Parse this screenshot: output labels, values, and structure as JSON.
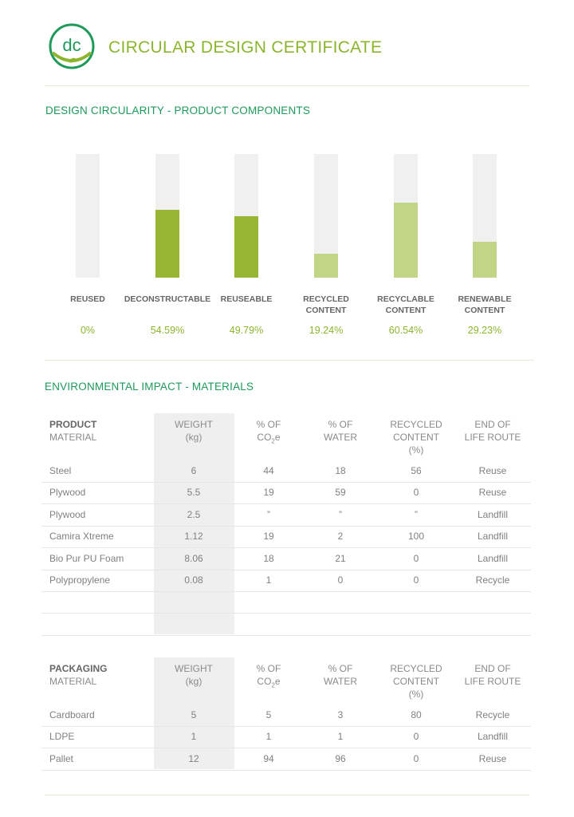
{
  "header": {
    "logo_text": "dc",
    "title": "CIRCULAR DESIGN CERTIFICATE"
  },
  "colors": {
    "brand_green": "#8cb52e",
    "section_green": "#1e9a5a",
    "bar_dark": "#97b634",
    "bar_light": "#c2d486",
    "track": "#f0f0f0"
  },
  "components": {
    "title": "DESIGN CIRCULARITY - PRODUCT COMPONENTS",
    "bars": [
      {
        "label_line1": "REUSED",
        "label_line2": "",
        "value_text": "0%",
        "percent": 0,
        "tone": "dark"
      },
      {
        "label_line1": "DECONSTRUCTABLE",
        "label_line2": "",
        "value_text": "54.59%",
        "percent": 54.59,
        "tone": "dark"
      },
      {
        "label_line1": "REUSEABLE",
        "label_line2": "",
        "value_text": "49.79%",
        "percent": 49.79,
        "tone": "dark"
      },
      {
        "label_line1": "RECYCLED",
        "label_line2": "CONTENT",
        "value_text": "19.24%",
        "percent": 19.24,
        "tone": "light"
      },
      {
        "label_line1": "RECYCLABLE",
        "label_line2": "CONTENT",
        "value_text": "60.54%",
        "percent": 60.54,
        "tone": "light"
      },
      {
        "label_line1": "RENEWABLE",
        "label_line2": "CONTENT",
        "value_text": "29.23%",
        "percent": 29.23,
        "tone": "light"
      }
    ]
  },
  "materials": {
    "title": "ENVIRONMENTAL IMPACT - MATERIALS",
    "columns": {
      "weight": [
        "WEIGHT",
        "(kg)"
      ],
      "co2": [
        "% OF",
        "CO",
        "2",
        "e"
      ],
      "water": [
        "% OF",
        "WATER"
      ],
      "recycled": [
        "RECYCLED",
        "CONTENT",
        "(%)"
      ],
      "eol": [
        "END OF",
        "LIFE ROUTE"
      ],
      "material": "MATERIAL"
    },
    "product": {
      "heading": "PRODUCT",
      "rows": [
        [
          "Steel",
          "6",
          "44",
          "18",
          "56",
          "Reuse"
        ],
        [
          "Plywood",
          "5.5",
          "19",
          "59",
          "0",
          "Reuse"
        ],
        [
          "Plywood",
          "2.5",
          "”",
          "”",
          "”",
          "Landfill"
        ],
        [
          "Camira Xtreme",
          "1.12",
          "19",
          "2",
          "100",
          "Landfill"
        ],
        [
          "Bio Pur PU Foam",
          "8.06",
          "18",
          "21",
          "0",
          "Landfill"
        ],
        [
          "Polypropylene",
          "0.08",
          "1",
          "0",
          "0",
          "Recycle"
        ],
        [
          "",
          "",
          "",
          "",
          "",
          ""
        ],
        [
          "",
          "",
          "",
          "",
          "",
          ""
        ]
      ]
    },
    "packaging": {
      "heading": "PACKAGING",
      "rows": [
        [
          "Cardboard",
          "5",
          "5",
          "3",
          "80",
          "Recycle"
        ],
        [
          "LDPE",
          "1",
          "1",
          "1",
          "0",
          "Landfill"
        ],
        [
          "Pallet",
          "12",
          "94",
          "96",
          "0",
          "Reuse"
        ]
      ]
    }
  }
}
